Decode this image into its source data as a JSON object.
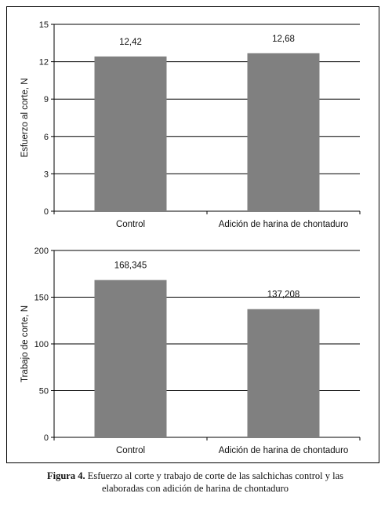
{
  "chart_data": [
    {
      "type": "bar",
      "ylabel": "Esfuerzo al corte, N",
      "categories": [
        "Control",
        "Adición de harina de chontaduro"
      ],
      "values": [
        12.42,
        12.68
      ],
      "value_labels": [
        "12,42",
        "12,68"
      ],
      "ylim": [
        0,
        15
      ],
      "yticks": [
        0,
        3,
        6,
        9,
        12,
        15
      ],
      "grid": true,
      "bar_color": "#808080"
    },
    {
      "type": "bar",
      "ylabel": "Trabajo de corte, N",
      "categories": [
        "Control",
        "Adición de harina de chontaduro"
      ],
      "values": [
        168.345,
        137.208
      ],
      "value_labels": [
        "168,345",
        "137,208"
      ],
      "ylim": [
        0,
        200
      ],
      "yticks": [
        0,
        50,
        100,
        150,
        200
      ],
      "grid": true,
      "bar_color": "#808080"
    }
  ],
  "caption": {
    "label": "Figura 4.",
    "text_line1": "Esfuerzo al corte y trabajo de corte de las salchichas control y las",
    "text_line2": "elaboradas con adición de harina de chontaduro"
  }
}
